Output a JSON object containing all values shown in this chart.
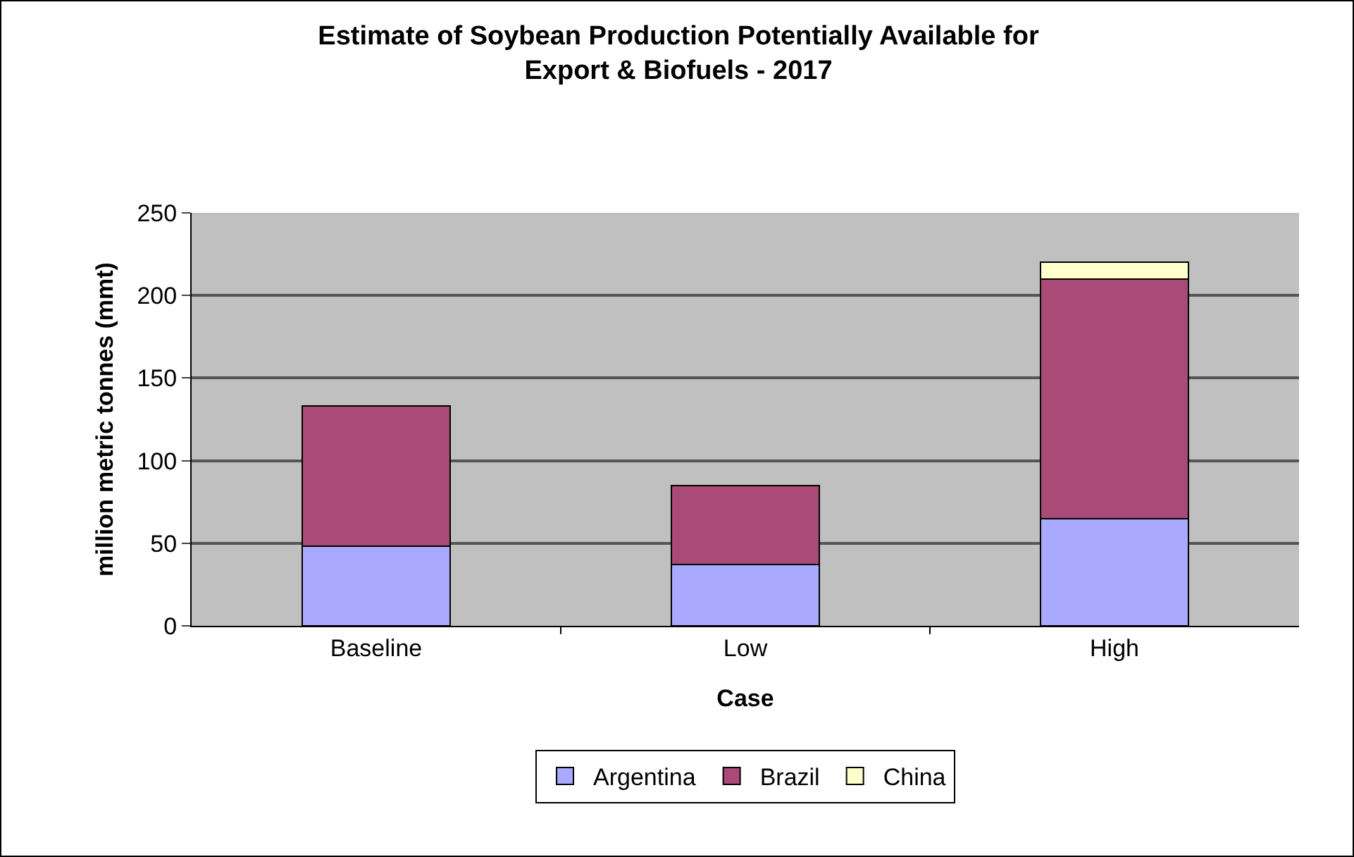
{
  "chart_data": {
    "type": "bar",
    "title": "Estimate of Soybean Production Potentially Available for Export & Biofuels - 2017",
    "xlabel": "Case",
    "ylabel": "million metric tonnes (mmt)",
    "categories": [
      "Baseline",
      "Low",
      "High"
    ],
    "stacked": true,
    "series": [
      {
        "name": "Argentina",
        "color": "#a9a9ff",
        "values": [
          48,
          37,
          65
        ]
      },
      {
        "name": "Brazil",
        "color": "#a94a77",
        "values": [
          85,
          48,
          145
        ]
      },
      {
        "name": "China",
        "color": "#ffffcc",
        "values": [
          null,
          null,
          10
        ]
      }
    ],
    "ylim": [
      0,
      250
    ],
    "yticks": [
      0,
      50,
      100,
      150,
      200,
      250
    ],
    "grid": "y",
    "legend": "bottom"
  }
}
